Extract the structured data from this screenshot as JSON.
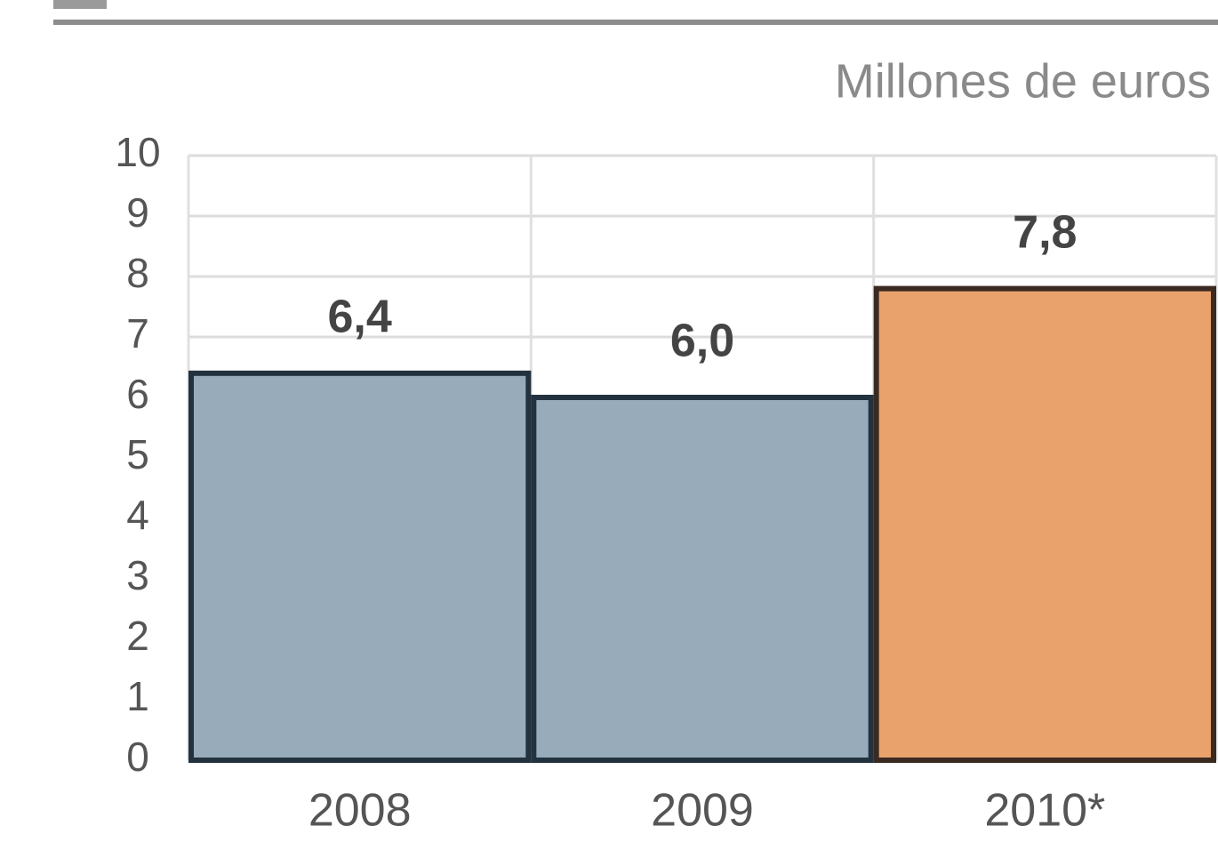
{
  "chart_data": {
    "type": "bar",
    "subtitle": "Millones de euros",
    "categories": [
      "2008",
      "2009",
      "2010*"
    ],
    "values": [
      6.4,
      6.0,
      7.8
    ],
    "value_labels": [
      "6,4",
      "6,0",
      "7,8"
    ],
    "colors": [
      "#97abba",
      "#97abba",
      "#e9a26c"
    ],
    "ylim": [
      0,
      10
    ],
    "yticks": [
      0,
      1,
      2,
      3,
      4,
      5,
      6,
      7,
      8,
      9,
      10
    ],
    "grid": true
  }
}
